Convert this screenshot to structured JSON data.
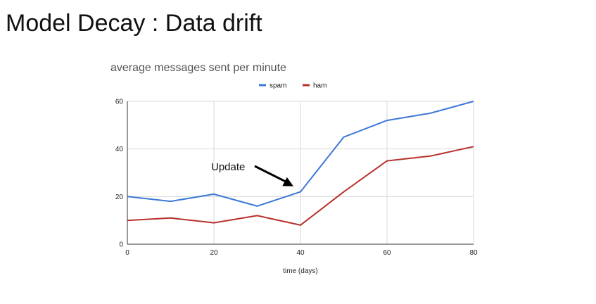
{
  "slide": {
    "title": "Model Decay : Data drift"
  },
  "chart_data": {
    "type": "line",
    "title": "average messages sent per minute",
    "xlabel": "time (days)",
    "ylabel": "",
    "xlim": [
      0,
      80
    ],
    "ylim": [
      0,
      60
    ],
    "x_ticks": [
      0,
      20,
      40,
      60,
      80
    ],
    "y_ticks": [
      0,
      20,
      40,
      60
    ],
    "grid": true,
    "legend_position": "top-center",
    "x": [
      0,
      10,
      20,
      30,
      40,
      50,
      60,
      70,
      80
    ],
    "series": [
      {
        "name": "spam",
        "color": "#3c78d8",
        "values": [
          20,
          18,
          21,
          16,
          22,
          45,
          52,
          55,
          60
        ]
      },
      {
        "name": "ham",
        "color": "#b7312c",
        "values": [
          10,
          11,
          9,
          12,
          8,
          22,
          35,
          37,
          41
        ]
      }
    ],
    "annotations": [
      {
        "text": "Update",
        "points_to_x": 40,
        "points_to_y": 22
      }
    ]
  }
}
